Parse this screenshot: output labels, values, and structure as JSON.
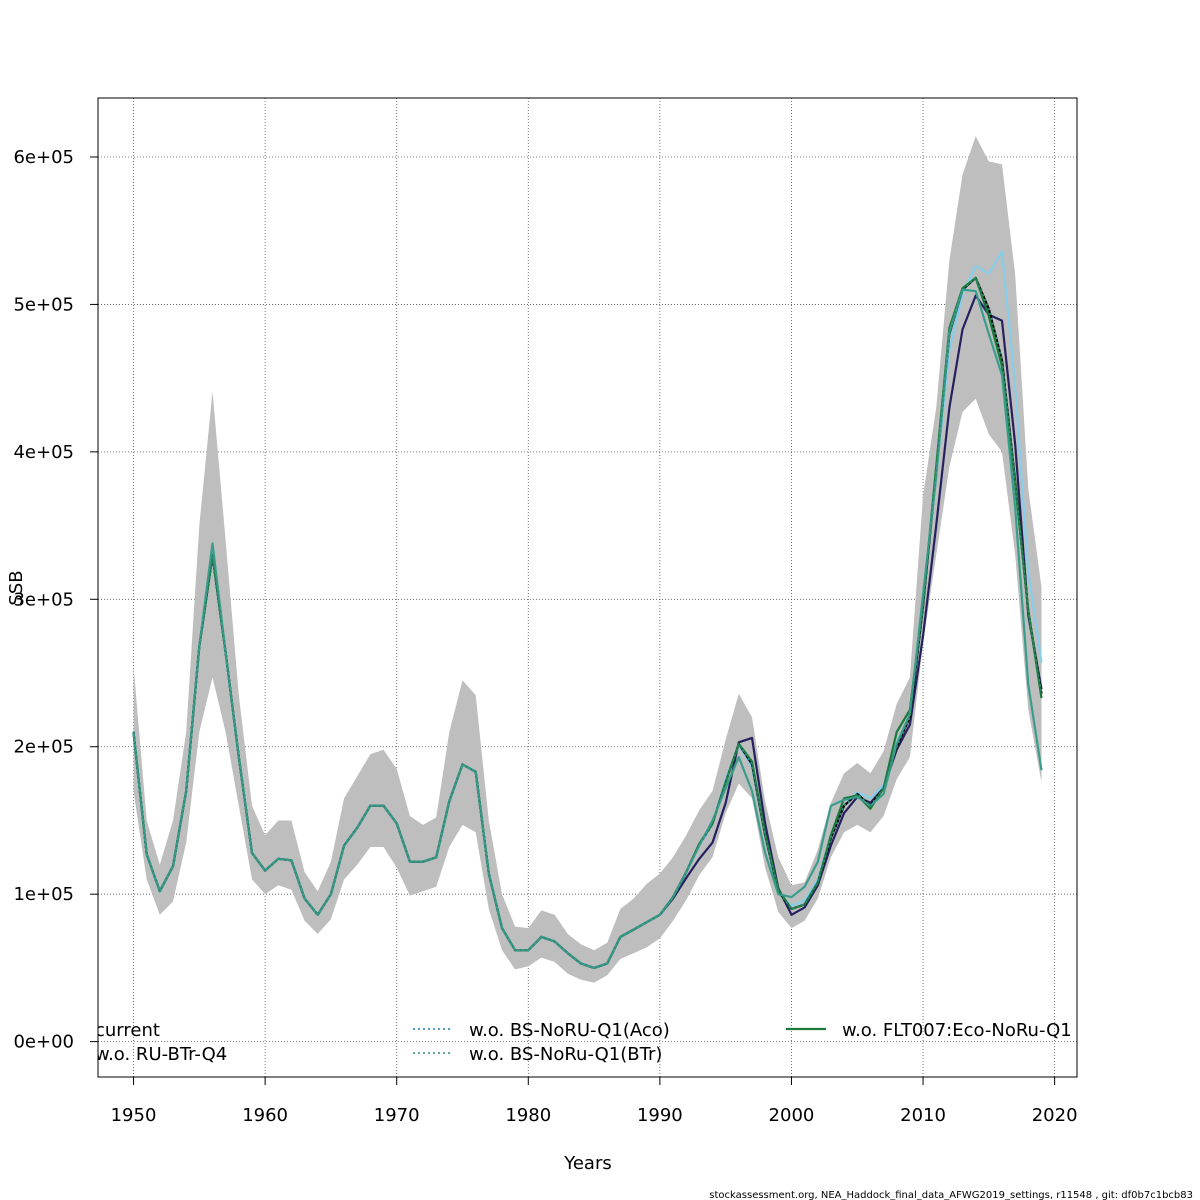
{
  "chart_data": {
    "type": "line",
    "title": "",
    "xlabel": "Years",
    "ylabel": "SSB",
    "xlim": [
      1947.3,
      2021.7
    ],
    "ylim": [
      -24000,
      640000
    ],
    "grid": true,
    "x_ticks": [
      {
        "value": 1950,
        "label": "1950"
      },
      {
        "value": 1960,
        "label": "1960"
      },
      {
        "value": 1970,
        "label": "1970"
      },
      {
        "value": 1980,
        "label": "1980"
      },
      {
        "value": 1990,
        "label": "1990"
      },
      {
        "value": 2000,
        "label": "2000"
      },
      {
        "value": 2010,
        "label": "2010"
      },
      {
        "value": 2020,
        "label": "2020"
      }
    ],
    "y_ticks": [
      {
        "value": 0,
        "label": "0e+00"
      },
      {
        "value": 100000,
        "label": "1e+05"
      },
      {
        "value": 200000,
        "label": "2e+05"
      },
      {
        "value": 300000,
        "label": "3e+05"
      },
      {
        "value": 400000,
        "label": "4e+05"
      },
      {
        "value": 500000,
        "label": "5e+05"
      },
      {
        "value": 600000,
        "label": "6e+05"
      }
    ],
    "x": [
      1950,
      1951,
      1952,
      1953,
      1954,
      1955,
      1956,
      1957,
      1958,
      1959,
      1960,
      1961,
      1962,
      1963,
      1964,
      1965,
      1966,
      1967,
      1968,
      1969,
      1970,
      1971,
      1972,
      1973,
      1974,
      1975,
      1976,
      1977,
      1978,
      1979,
      1980,
      1981,
      1982,
      1983,
      1984,
      1985,
      1986,
      1987,
      1988,
      1989,
      1990,
      1991,
      1992,
      1993,
      1994,
      1995,
      1996,
      1997,
      1998,
      1999,
      2000,
      2001,
      2002,
      2003,
      2004,
      2005,
      2006,
      2007,
      2008,
      2009,
      2010,
      2011,
      2012,
      2013,
      2014,
      2015,
      2016,
      2017,
      2018,
      2019
    ],
    "confidence_band": {
      "color": "#bebebe",
      "upper": [
        255000,
        150000,
        120000,
        150000,
        210000,
        350000,
        441000,
        340000,
        235000,
        160000,
        140000,
        150000,
        150000,
        115000,
        102000,
        122000,
        165000,
        180000,
        195000,
        198000,
        185000,
        153000,
        147000,
        152000,
        210000,
        245000,
        235000,
        150000,
        100000,
        78000,
        77000,
        89000,
        86000,
        73000,
        66000,
        62000,
        67000,
        90000,
        97000,
        107000,
        114000,
        125000,
        140000,
        157000,
        170000,
        205000,
        236000,
        220000,
        163000,
        125000,
        106000,
        108000,
        130000,
        162000,
        182000,
        189000,
        182000,
        197000,
        229000,
        247000,
        370000,
        430000,
        530000,
        588000,
        614000,
        597000,
        595000,
        520000,
        375000,
        308000
      ],
      "lower": [
        170000,
        110000,
        86000,
        95000,
        135000,
        210000,
        247000,
        210000,
        160000,
        110000,
        100000,
        106000,
        103000,
        82000,
        73000,
        83000,
        110000,
        120000,
        132000,
        132000,
        118000,
        99000,
        102000,
        105000,
        132000,
        147000,
        142000,
        90000,
        62000,
        49000,
        51000,
        57000,
        54000,
        46000,
        42000,
        40000,
        45000,
        56000,
        60000,
        64000,
        70000,
        82000,
        96000,
        113000,
        125000,
        155000,
        175000,
        165000,
        118000,
        88000,
        77000,
        82000,
        97000,
        125000,
        142000,
        147000,
        142000,
        153000,
        178000,
        193000,
        270000,
        330000,
        390000,
        427000,
        436000,
        412000,
        400000,
        330000,
        225000,
        176000
      ]
    },
    "series": [
      {
        "color": "#25215f",
        "style": "solid",
        "values": [
          210000,
          127000,
          102000,
          119000,
          170000,
          268000,
          330000,
          264000,
          193000,
          128000,
          116000,
          124000,
          123000,
          97000,
          86000,
          100000,
          133000,
          145000,
          160000,
          160000,
          148000,
          122000,
          122000,
          125000,
          163000,
          188000,
          183000,
          114000,
          77000,
          62000,
          62000,
          71000,
          68000,
          60000,
          53000,
          50000,
          53000,
          71000,
          76000,
          81000,
          86000,
          97000,
          111000,
          124000,
          135000,
          162000,
          203000,
          206000,
          148000,
          104000,
          86000,
          91000,
          106000,
          133000,
          155000,
          166000,
          162000,
          172000,
          198000,
          215000,
          275000,
          350000,
          430000,
          483000,
          506000,
          493000,
          489000,
          405000,
          289000,
          239000
        ]
      },
      {
        "color": "#87ceeb",
        "style": "solid",
        "values": [
          210000,
          127000,
          102000,
          119000,
          170000,
          268000,
          330000,
          264000,
          193000,
          128000,
          116000,
          124000,
          123000,
          97000,
          86000,
          100000,
          133000,
          145000,
          160000,
          160000,
          148000,
          122000,
          122000,
          125000,
          163000,
          188000,
          183000,
          114000,
          77000,
          62000,
          62000,
          71000,
          68000,
          60000,
          53000,
          50000,
          53000,
          71000,
          76000,
          81000,
          86000,
          98000,
          115000,
          133000,
          148000,
          178000,
          201000,
          186000,
          140000,
          101000,
          92000,
          96000,
          110000,
          140000,
          160000,
          169000,
          165000,
          174000,
          203000,
          222000,
          297000,
          384000,
          469000,
          507000,
          526000,
          521000,
          536000,
          444000,
          318000,
          257000
        ]
      },
      {
        "name": "current",
        "color": "#000000",
        "style": "solid",
        "values": [
          210000,
          127000,
          102000,
          119000,
          170000,
          268000,
          330000,
          264000,
          193000,
          128000,
          116000,
          124000,
          123000,
          97000,
          86000,
          100000,
          133000,
          145000,
          160000,
          160000,
          148000,
          122000,
          122000,
          125000,
          163000,
          188000,
          183000,
          114000,
          77000,
          62000,
          62000,
          71000,
          68000,
          60000,
          53000,
          50000,
          53000,
          71000,
          76000,
          81000,
          86000,
          98000,
          115000,
          134000,
          148000,
          176000,
          202000,
          188000,
          140000,
          102000,
          90000,
          93000,
          108000,
          138000,
          160000,
          168000,
          160000,
          172000,
          200000,
          220000,
          295000,
          387000,
          480000,
          510000,
          518000,
          497000,
          462000,
          380000,
          292000,
          236000
        ]
      },
      {
        "name": "w.o. BS-NoRU-Q1(Aco)",
        "color": "#1f78b4",
        "style": "dotted",
        "values": [
          210000,
          127000,
          102000,
          119000,
          170000,
          268000,
          330000,
          264000,
          193000,
          128000,
          116000,
          124000,
          123000,
          97000,
          86000,
          100000,
          133000,
          145000,
          160000,
          160000,
          148000,
          122000,
          122000,
          125000,
          163000,
          188000,
          183000,
          114000,
          77000,
          62000,
          62000,
          71000,
          68000,
          60000,
          53000,
          50000,
          53000,
          71000,
          76000,
          81000,
          86000,
          98000,
          115000,
          133000,
          147000,
          176000,
          202000,
          188000,
          140000,
          102000,
          90000,
          93000,
          108000,
          138000,
          160000,
          168000,
          160000,
          172000,
          200000,
          220000,
          295000,
          387000,
          480000,
          510000,
          518000,
          497000,
          462000,
          380000,
          292000,
          236000
        ]
      },
      {
        "name": "w.o. FLT007:Eco-NoRu-Q1",
        "color": "#1a7a3a",
        "style": "solid",
        "values": [
          210000,
          127000,
          102000,
          119000,
          170000,
          268000,
          330000,
          264000,
          193000,
          128000,
          116000,
          124000,
          123000,
          97000,
          86000,
          100000,
          133000,
          145000,
          160000,
          160000,
          148000,
          122000,
          122000,
          125000,
          163000,
          188000,
          183000,
          114000,
          77000,
          62000,
          62000,
          71000,
          68000,
          60000,
          53000,
          50000,
          53000,
          71000,
          76000,
          81000,
          86000,
          98000,
          115000,
          134000,
          148000,
          176000,
          202000,
          190000,
          141000,
          103000,
          90000,
          93000,
          108000,
          140000,
          165000,
          167000,
          158000,
          172000,
          210000,
          225000,
          297000,
          390000,
          484000,
          511000,
          518000,
          492000,
          458000,
          378000,
          292000,
          233000
        ]
      },
      {
        "name": "w.o. RU-BTr-Q4",
        "color": "#3a9d8c",
        "style": "solid",
        "values": [
          210000,
          127000,
          102000,
          119000,
          170000,
          268000,
          338000,
          264000,
          193000,
          128000,
          116000,
          124000,
          123000,
          97000,
          86000,
          100000,
          133000,
          145000,
          160000,
          160000,
          148000,
          122000,
          122000,
          125000,
          163000,
          188000,
          183000,
          114000,
          77000,
          62000,
          62000,
          71000,
          68000,
          60000,
          53000,
          50000,
          53000,
          71000,
          76000,
          81000,
          86000,
          98000,
          115000,
          133000,
          150000,
          172000,
          193000,
          170000,
          128000,
          100000,
          98000,
          105000,
          122000,
          160000,
          164000,
          166000,
          160000,
          168000,
          202000,
          222000,
          303000,
          383000,
          481000,
          510000,
          509000,
          480000,
          452000,
          362000,
          242000,
          184000
        ]
      },
      {
        "name": "w.o. BS-NoRu-Q1(BTr)",
        "color": "#2e8b7a",
        "style": "dotted",
        "values": [
          210000,
          127000,
          102000,
          119000,
          170000,
          268000,
          330000,
          264000,
          193000,
          128000,
          116000,
          124000,
          123000,
          97000,
          86000,
          100000,
          133000,
          145000,
          160000,
          160000,
          148000,
          122000,
          122000,
          125000,
          163000,
          188000,
          183000,
          114000,
          77000,
          62000,
          62000,
          71000,
          68000,
          60000,
          53000,
          50000,
          53000,
          71000,
          76000,
          81000,
          86000,
          98000,
          115000,
          134000,
          148000,
          176000,
          202000,
          188000,
          140000,
          102000,
          90000,
          93000,
          108000,
          138000,
          160000,
          168000,
          160000,
          172000,
          200000,
          220000,
          295000,
          387000,
          480000,
          510000,
          518000,
          497000,
          462000,
          380000,
          292000,
          236000
        ]
      }
    ],
    "legend": {
      "placement": "bottom, inside plot",
      "items": [
        {
          "label": "current",
          "color": "#000000",
          "style": "solid",
          "col": 0,
          "row": 0
        },
        {
          "label": "w.o. RU-BTr-Q4",
          "color": "#3a9d8c",
          "style": "solid",
          "col": 0,
          "row": 1
        },
        {
          "label": "w.o. BS-NoRU-Q1(Aco)",
          "color": "#1f78b4",
          "style": "dotted",
          "col": 1,
          "row": 0
        },
        {
          "label": "w.o. BS-NoRu-Q1(BTr)",
          "color": "#2e8b7a",
          "style": "dotted",
          "col": 1,
          "row": 1
        },
        {
          "label": "w.o. FLT007:Eco-NoRu-Q1",
          "color": "#1a7a3a",
          "style": "solid",
          "col": 2,
          "row": 0
        }
      ]
    },
    "footer": "stockassessment.org, NEA_Haddock_final_data_AFWG2019_settings, r11548 , git: df0b7c1bcb83"
  }
}
